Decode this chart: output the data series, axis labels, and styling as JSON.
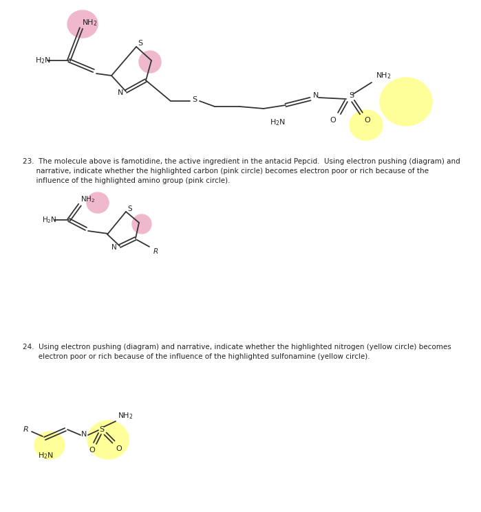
{
  "bg_color": "#ffffff",
  "pink_color": "#f0b8cc",
  "yellow_color": "#ffff99",
  "fig_w": 6.99,
  "fig_h": 7.45,
  "dpi": 100,
  "q23_lines": [
    "23.  The molecule above is famotidine, the active ingredient in the antacid Pepcid.  Using electron pushing (diagram) and",
    "      narrative, indicate whether the highlighted carbon (pink circle) becomes electron poor or rich because of the",
    "      influence of the highlighted amino group (pink circle)."
  ],
  "q24_lines": [
    "24.  Using electron pushing (diagram) and narrative, indicate whether the highlighted nitrogen (yellow circle) becomes",
    "       electron poor or rich because of the influence of the highlighted sulfonamine (yellow circle)."
  ]
}
